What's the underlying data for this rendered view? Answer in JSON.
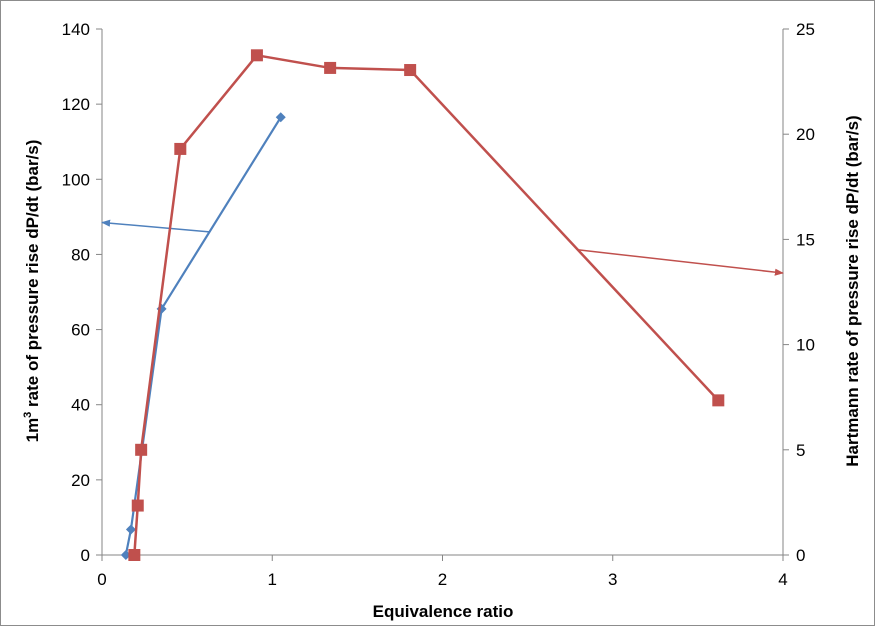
{
  "chart_data": {
    "type": "line",
    "xlabel": "Equivalence ratio",
    "x_ticks": [
      "0",
      "1",
      "2",
      "3",
      "4"
    ],
    "xlim": [
      0,
      4
    ],
    "y_left": {
      "label_prefix": "1m",
      "label_sup": "3",
      "label_suffix": " rate of pressure rise dP/dt (bar/s)",
      "ylim": [
        0,
        140
      ],
      "ticks": [
        "0",
        "20",
        "40",
        "60",
        "80",
        "100",
        "120",
        "140"
      ]
    },
    "y_right": {
      "label": "Hartmann rate of pressure rise dP/dt (bar/s)",
      "ylim": [
        0,
        25
      ],
      "ticks": [
        "0",
        "5",
        "10",
        "15",
        "20",
        "25"
      ]
    },
    "grid": false,
    "legend": "none",
    "series": [
      {
        "axis": "left",
        "color": "#4f81bd",
        "marker": "diamond",
        "x": [
          0.14,
          0.17,
          0.35,
          1.05
        ],
        "y": [
          0,
          6.8,
          65.5,
          116.5
        ]
      },
      {
        "axis": "right",
        "color": "#c0504d",
        "marker": "square",
        "x": [
          0.19,
          0.21,
          0.23,
          0.46,
          0.91,
          1.34,
          1.81,
          3.62
        ],
        "y": [
          0,
          2.35,
          5,
          19.3,
          23.75,
          23.15,
          23.05,
          7.35
        ]
      }
    ],
    "annotations": [
      {
        "type": "arrow",
        "color": "#4f81bd",
        "from": [
          0.63,
          86
        ],
        "to": [
          0,
          88.5
        ]
      },
      {
        "type": "arrow",
        "color": "#c0504d",
        "axis": "right",
        "from": [
          2.8,
          14.5
        ],
        "to": [
          4,
          13.4
        ]
      }
    ]
  }
}
